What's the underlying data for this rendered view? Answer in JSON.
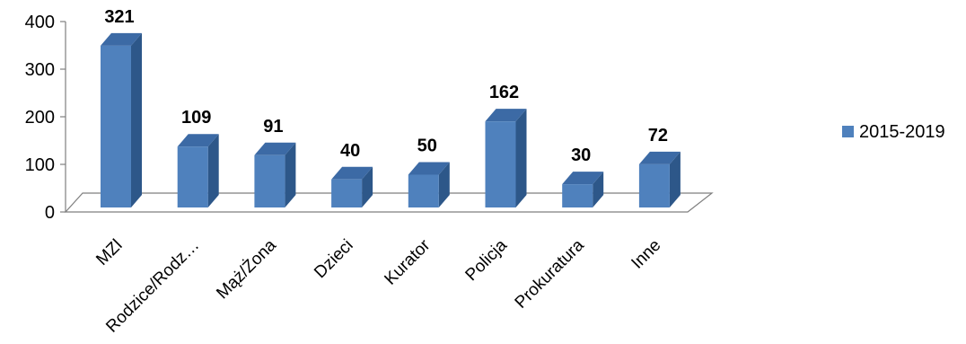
{
  "chart_data": {
    "type": "bar",
    "style": "3d-column",
    "categories": [
      "MZl",
      "Rodzice/Rodz…",
      "Mąż/Żona",
      "Dzieci",
      "Kurator",
      "Policja",
      "Prokuratura",
      "Inne"
    ],
    "series": [
      {
        "name": "2015-2019",
        "values": [
          321,
          109,
          91,
          40,
          50,
          162,
          30,
          72
        ]
      }
    ],
    "y_ticks": [
      "0",
      "100",
      "200",
      "300",
      "400"
    ],
    "ylim": [
      0,
      400
    ],
    "grid": false,
    "legend": "right",
    "colors": {
      "bar_front": "#4f81bd",
      "bar_side": "#2d5789",
      "bar_top": "#3c6aa5"
    }
  }
}
